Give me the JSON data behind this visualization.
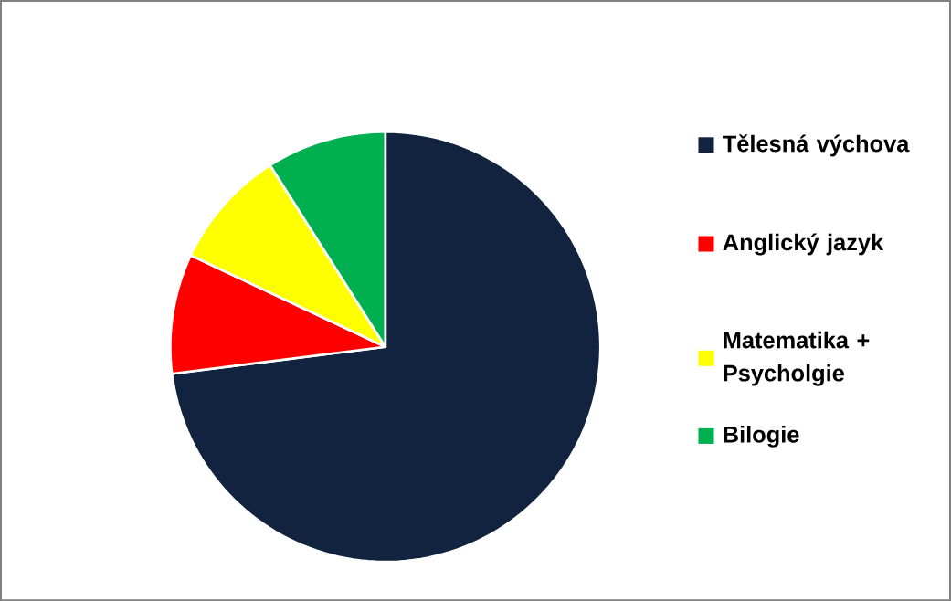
{
  "chart_data": {
    "type": "pie",
    "categories": [
      "Tělesná výchova",
      "Anglický jazyk",
      "Matematika + Psycholgie",
      "Bilogie"
    ],
    "values": [
      73,
      9,
      9,
      9
    ],
    "colors": [
      "#12233f",
      "#ff0000",
      "#ffff00",
      "#00b050"
    ],
    "legend": "right"
  }
}
